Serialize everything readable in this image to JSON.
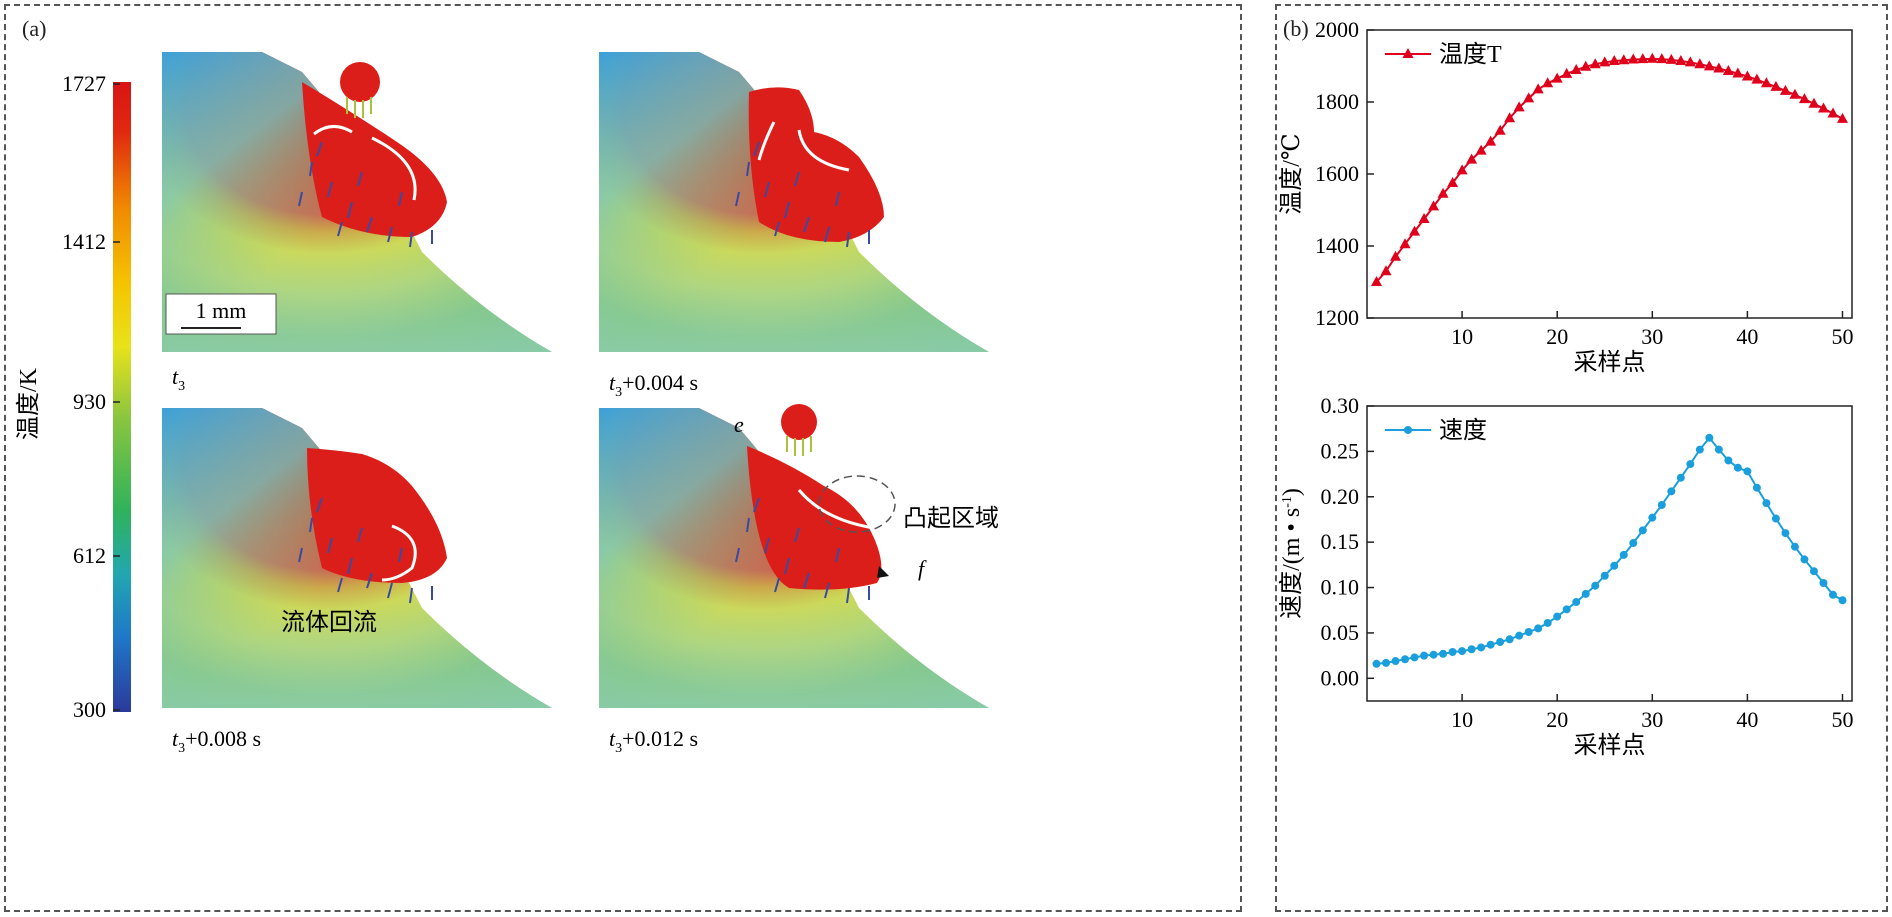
{
  "panel_a": {
    "label": "(a)",
    "colorbar": {
      "title": "温度/K",
      "ticks": [
        "1727",
        "1412",
        "930",
        "612",
        "300"
      ],
      "tick_values": [
        1727,
        1412,
        930,
        612,
        300
      ],
      "range": [
        300,
        1727
      ]
    },
    "scale_bar": "1 mm",
    "snapshots": [
      {
        "label_prefix": "t",
        "label_sub": "3",
        "label_suffix": ""
      },
      {
        "label_prefix": "t",
        "label_sub": "3",
        "label_suffix": "+0.004 s"
      },
      {
        "label_prefix": "t",
        "label_sub": "3",
        "label_suffix": "+0.008 s"
      },
      {
        "label_prefix": "t",
        "label_sub": "3",
        "label_suffix": "+0.012 s"
      }
    ],
    "annotations": {
      "backflow": "流体回流",
      "bulge": "凸起区域",
      "point_e": "e",
      "point_f": "f"
    }
  },
  "panel_b": {
    "label": "(b)",
    "chart_data": [
      {
        "type": "line",
        "xlabel": "采样点",
        "ylabel": "温度/℃",
        "xlim": [
          0,
          51
        ],
        "ylim": [
          1200,
          2000
        ],
        "xticks": [
          10,
          20,
          30,
          40,
          50
        ],
        "yticks": [
          1200,
          1400,
          1600,
          1800,
          2000
        ],
        "legend_position": "top-left",
        "color": "#e0001b",
        "marker": "triangle",
        "series": [
          {
            "name": "温度T",
            "x": [
              1,
              2,
              3,
              4,
              5,
              6,
              7,
              8,
              9,
              10,
              11,
              12,
              13,
              14,
              15,
              16,
              17,
              18,
              19,
              20,
              21,
              22,
              23,
              24,
              25,
              26,
              27,
              28,
              29,
              30,
              31,
              32,
              33,
              34,
              35,
              36,
              37,
              38,
              39,
              40,
              41,
              42,
              43,
              44,
              45,
              46,
              47,
              48,
              49,
              50
            ],
            "values": [
              1300,
              1330,
              1370,
              1405,
              1440,
              1475,
              1510,
              1545,
              1575,
              1610,
              1640,
              1665,
              1690,
              1720,
              1755,
              1785,
              1810,
              1835,
              1852,
              1865,
              1878,
              1889,
              1898,
              1905,
              1910,
              1914,
              1916,
              1918,
              1919,
              1920,
              1919,
              1917,
              1914,
              1910,
              1905,
              1899,
              1893,
              1886,
              1879,
              1871,
              1862,
              1852,
              1842,
              1831,
              1820,
              1808,
              1795,
              1782,
              1768,
              1753
            ]
          }
        ]
      },
      {
        "type": "line",
        "xlabel": "采样点",
        "ylabel_main": "速度/(m • s",
        "ylabel_sup": "-1",
        "ylabel_end": ")",
        "xlim": [
          0,
          51
        ],
        "ylim": [
          -0.025,
          0.3
        ],
        "xticks": [
          10,
          20,
          30,
          40,
          50
        ],
        "yticks": [
          0.0,
          0.05,
          0.1,
          0.15,
          0.2,
          0.25,
          0.3
        ],
        "ytick_labels": [
          "0.00",
          "0.05",
          "0.10",
          "0.15",
          "0.20",
          "0.25",
          "0.30"
        ],
        "legend_position": "top-left",
        "color": "#1a9fdc",
        "marker": "circle",
        "series": [
          {
            "name": "速度",
            "x": [
              1,
              2,
              3,
              4,
              5,
              6,
              7,
              8,
              9,
              10,
              11,
              12,
              13,
              14,
              15,
              16,
              17,
              18,
              19,
              20,
              21,
              22,
              23,
              24,
              25,
              26,
              27,
              28,
              29,
              30,
              31,
              32,
              33,
              34,
              35,
              36,
              37,
              38,
              39,
              40,
              41,
              42,
              43,
              44,
              45,
              46,
              47,
              48,
              49,
              50
            ],
            "values": [
              0.016,
              0.017,
              0.019,
              0.021,
              0.023,
              0.025,
              0.026,
              0.027,
              0.029,
              0.03,
              0.032,
              0.034,
              0.037,
              0.04,
              0.043,
              0.047,
              0.051,
              0.055,
              0.061,
              0.068,
              0.076,
              0.084,
              0.093,
              0.102,
              0.113,
              0.124,
              0.136,
              0.149,
              0.163,
              0.177,
              0.191,
              0.206,
              0.221,
              0.236,
              0.252,
              0.265,
              0.252,
              0.24,
              0.232,
              0.228,
              0.21,
              0.193,
              0.176,
              0.16,
              0.145,
              0.131,
              0.118,
              0.105,
              0.092,
              0.086
            ]
          }
        ]
      }
    ]
  }
}
